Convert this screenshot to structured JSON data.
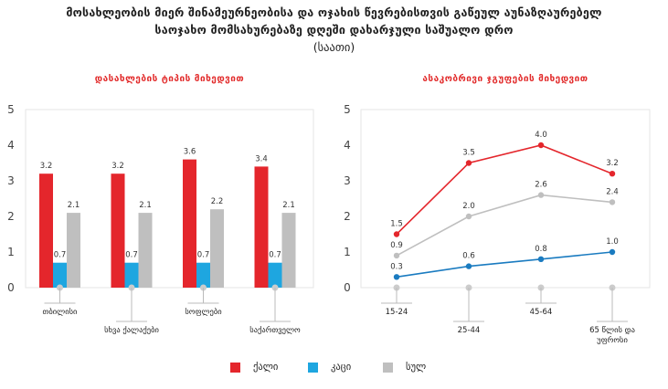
{
  "title": {
    "line1": "მოსახლეობის მიერ შინამეურნეობისა და ოჯახის წევრებისთვის გაწეულ აუნაზღაურებელ",
    "line2": "საოჯახო მომსახურებაზე დღეში დახარჯული საშუალო დრო",
    "unit": "(საათი)"
  },
  "colors": {
    "female": "#e4262c",
    "male": "#1ea6e0",
    "total": "#bfbfbf",
    "male_line": "#1a7bc0"
  },
  "legend": [
    {
      "label": "ქალი",
      "color": "#e4262c"
    },
    {
      "label": "კაცი",
      "color": "#1ea6e0"
    },
    {
      "label": "სულ",
      "color": "#bfbfbf"
    }
  ],
  "chart_data": [
    {
      "type": "bar",
      "title": "დასახლების ტიპის მიხედვით",
      "categories": [
        "თბილისი",
        "სხვა ქალაქები",
        "სოფლები",
        "საქართველო"
      ],
      "series": [
        {
          "name": "ქალი",
          "values": [
            3.2,
            3.2,
            3.6,
            3.4
          ]
        },
        {
          "name": "კაცი",
          "values": [
            0.7,
            0.7,
            0.7,
            0.7
          ]
        },
        {
          "name": "სულ",
          "values": [
            2.1,
            2.1,
            2.2,
            2.1
          ]
        }
      ],
      "yticks": [
        0,
        1,
        2,
        3,
        4,
        5
      ],
      "ylim": [
        0,
        5
      ],
      "grid": false
    },
    {
      "type": "line",
      "title": "ასაკობრივი ჯგუფების მიხედვით",
      "categories": [
        "15-24",
        "25-44",
        "45-64",
        "65 წლის და უფროსი"
      ],
      "series": [
        {
          "name": "ქალი",
          "values": [
            1.5,
            3.5,
            4.0,
            3.2
          ]
        },
        {
          "name": "სულ",
          "values": [
            0.9,
            2.0,
            2.6,
            2.4
          ]
        },
        {
          "name": "კაცი",
          "values": [
            0.3,
            0.6,
            0.8,
            1.0
          ]
        }
      ],
      "yticks": [
        0,
        1,
        2,
        3,
        4,
        5
      ],
      "ylim": [
        0,
        5
      ],
      "grid": false
    }
  ]
}
